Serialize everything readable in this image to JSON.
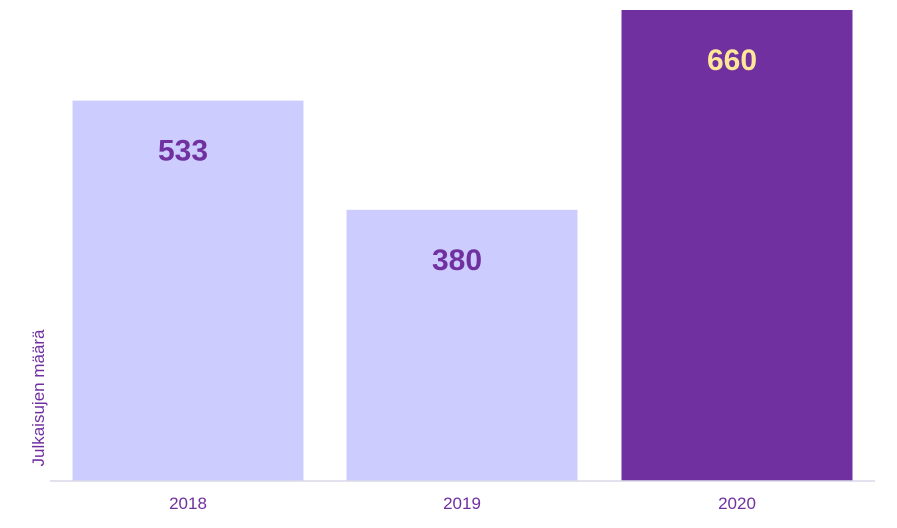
{
  "chart_data": {
    "type": "bar",
    "categories": [
      "2018",
      "2019",
      "2020"
    ],
    "values": [
      533,
      380,
      660
    ],
    "data_labels": [
      "533",
      "380",
      "660"
    ],
    "title": "",
    "xlabel": "",
    "ylabel": "Julkaisujen määrä",
    "ylim": [
      0,
      660
    ],
    "grid": false,
    "legend": "none",
    "colors": {
      "bar_default": "#ccccff",
      "bar_highlight": "#7030a0",
      "label_default": "#7030a0",
      "label_highlight": "#ffe699",
      "axis_text": "#7030a0",
      "axis_line": "#d9d9e8"
    },
    "highlight_index": 2
  }
}
